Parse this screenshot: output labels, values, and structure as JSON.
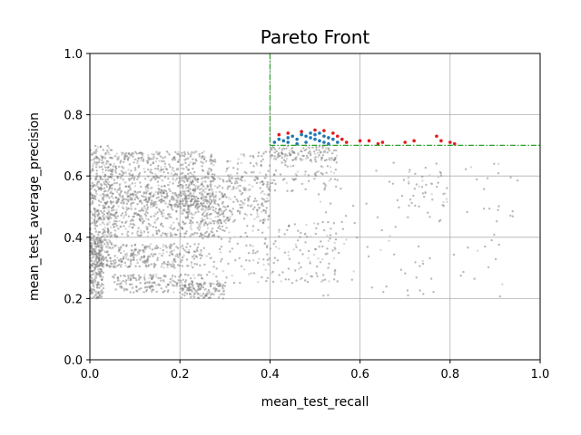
{
  "chart_data": {
    "type": "scatter",
    "title": "Pareto Front",
    "xlabel": "mean_test_recall",
    "ylabel": "mean_test_average_precision",
    "xlim": [
      0.0,
      1.0
    ],
    "ylim": [
      0.0,
      1.0
    ],
    "xticks": [
      "0.0",
      "0.2",
      "0.4",
      "0.6",
      "0.8",
      "1.0"
    ],
    "yticks": [
      "0.0",
      "0.2",
      "0.4",
      "0.6",
      "0.8",
      "1.0"
    ],
    "grid": true,
    "thresholds": {
      "recall": 0.4,
      "average_precision": 0.7
    },
    "colors": {
      "all": "#808080",
      "faint": "#c8c8c8",
      "qualified": "#1f77b4",
      "pareto": "#e41a1c",
      "threshold": "#2ca02c"
    },
    "series": [
      {
        "role": "all-candidates",
        "clusters": [
          {
            "x": [
              0.0,
              0.05
            ],
            "y": [
              0.3,
              0.7
            ],
            "n": 450
          },
          {
            "x": [
              0.0,
              0.03
            ],
            "y": [
              0.2,
              0.4
            ],
            "n": 250
          },
          {
            "x": [
              0.05,
              0.28
            ],
            "y": [
              0.5,
              0.68
            ],
            "n": 600
          },
          {
            "x": [
              0.05,
              0.3
            ],
            "y": [
              0.4,
              0.55
            ],
            "n": 450
          },
          {
            "x": [
              0.2,
              0.4
            ],
            "y": [
              0.45,
              0.6
            ],
            "n": 300
          },
          {
            "x": [
              0.05,
              0.25
            ],
            "y": [
              0.3,
              0.38
            ],
            "n": 250
          },
          {
            "x": [
              0.05,
              0.25
            ],
            "y": [
              0.22,
              0.28
            ],
            "n": 180
          },
          {
            "x": [
              0.2,
              0.3
            ],
            "y": [
              0.2,
              0.25
            ],
            "n": 120
          },
          {
            "x": [
              0.25,
              0.55
            ],
            "y": [
              0.25,
              0.45
            ],
            "n": 200
          },
          {
            "x": [
              0.3,
              0.55
            ],
            "y": [
              0.55,
              0.68
            ],
            "n": 150
          },
          {
            "x": [
              0.4,
              0.55
            ],
            "y": [
              0.65,
              0.7
            ],
            "n": 120
          },
          {
            "x": [
              0.45,
              0.95
            ],
            "y": [
              0.2,
              0.65
            ],
            "n": 120
          },
          {
            "x": [
              0.7,
              0.8
            ],
            "y": [
              0.5,
              0.63
            ],
            "n": 40
          }
        ]
      },
      {
        "role": "qualified",
        "points": [
          {
            "x": 0.41,
            "y": 0.71
          },
          {
            "x": 0.42,
            "y": 0.72
          },
          {
            "x": 0.43,
            "y": 0.715
          },
          {
            "x": 0.44,
            "y": 0.725
          },
          {
            "x": 0.45,
            "y": 0.73
          },
          {
            "x": 0.46,
            "y": 0.72
          },
          {
            "x": 0.47,
            "y": 0.735
          },
          {
            "x": 0.48,
            "y": 0.73
          },
          {
            "x": 0.49,
            "y": 0.74
          },
          {
            "x": 0.5,
            "y": 0.735
          },
          {
            "x": 0.51,
            "y": 0.74
          },
          {
            "x": 0.52,
            "y": 0.73
          },
          {
            "x": 0.53,
            "y": 0.725
          },
          {
            "x": 0.54,
            "y": 0.72
          },
          {
            "x": 0.55,
            "y": 0.71
          },
          {
            "x": 0.46,
            "y": 0.705
          },
          {
            "x": 0.48,
            "y": 0.71
          },
          {
            "x": 0.5,
            "y": 0.72
          },
          {
            "x": 0.52,
            "y": 0.71
          },
          {
            "x": 0.44,
            "y": 0.71
          },
          {
            "x": 0.47,
            "y": 0.745
          },
          {
            "x": 0.49,
            "y": 0.725
          },
          {
            "x": 0.51,
            "y": 0.715
          },
          {
            "x": 0.53,
            "y": 0.705
          }
        ]
      },
      {
        "role": "pareto-front",
        "points": [
          {
            "x": 0.42,
            "y": 0.735
          },
          {
            "x": 0.44,
            "y": 0.74
          },
          {
            "x": 0.47,
            "y": 0.745
          },
          {
            "x": 0.5,
            "y": 0.75
          },
          {
            "x": 0.52,
            "y": 0.748
          },
          {
            "x": 0.54,
            "y": 0.74
          },
          {
            "x": 0.55,
            "y": 0.73
          },
          {
            "x": 0.56,
            "y": 0.72
          },
          {
            "x": 0.6,
            "y": 0.715
          },
          {
            "x": 0.62,
            "y": 0.715
          },
          {
            "x": 0.65,
            "y": 0.71
          },
          {
            "x": 0.7,
            "y": 0.71
          },
          {
            "x": 0.72,
            "y": 0.715
          },
          {
            "x": 0.77,
            "y": 0.73
          },
          {
            "x": 0.78,
            "y": 0.715
          },
          {
            "x": 0.8,
            "y": 0.71
          },
          {
            "x": 0.81,
            "y": 0.705
          },
          {
            "x": 0.57,
            "y": 0.71
          },
          {
            "x": 0.64,
            "y": 0.705
          }
        ]
      }
    ]
  }
}
